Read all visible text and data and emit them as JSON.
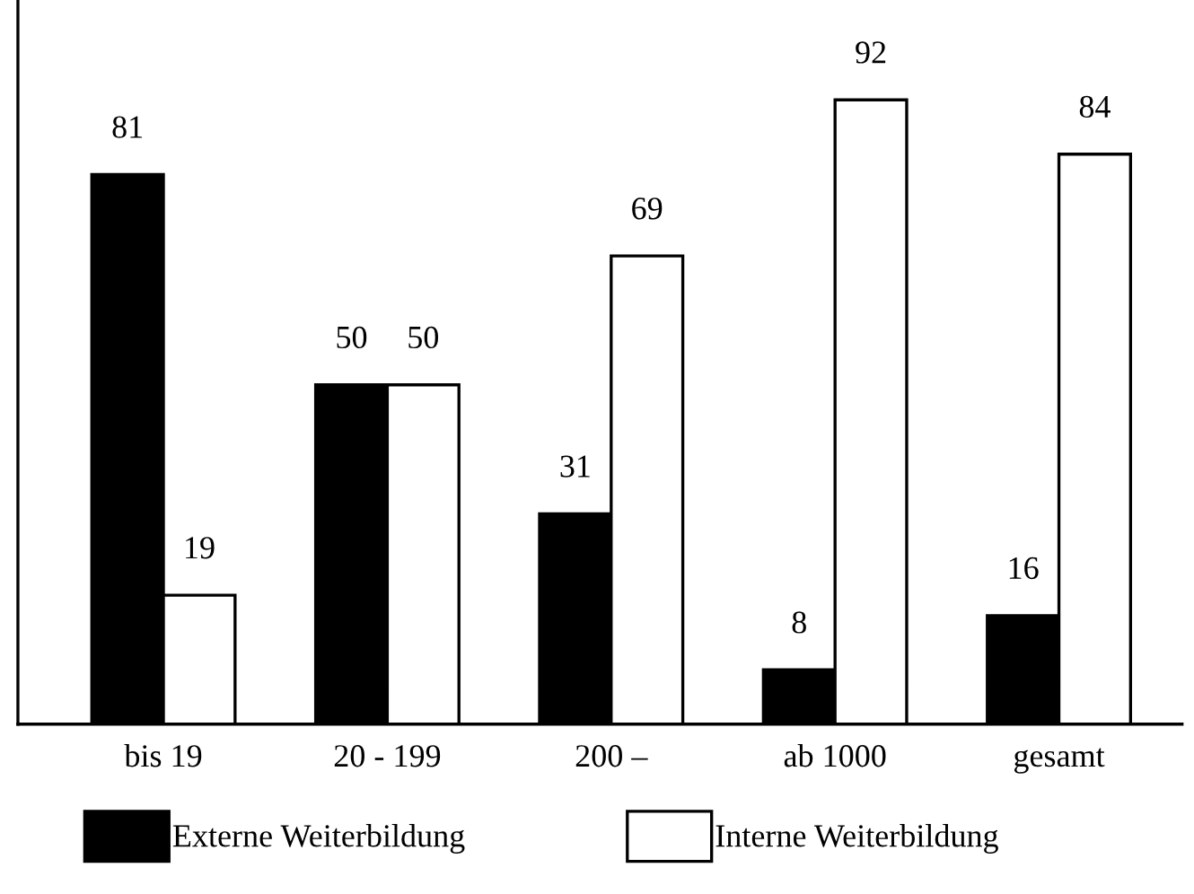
{
  "chart_data": {
    "type": "bar",
    "categories": [
      "bis 19",
      "20 - 199",
      "200 –",
      "ab 1000",
      "gesamt"
    ],
    "series": [
      {
        "name": "Externe Weiterbildung",
        "color": "#000000",
        "values": [
          81,
          50,
          31,
          8,
          16
        ]
      },
      {
        "name": "Interne Weiterbildung",
        "color": "#ffffff",
        "values": [
          19,
          50,
          69,
          92,
          84
        ]
      }
    ],
    "data_labels": true,
    "legend": "bottom",
    "grid": false
  }
}
